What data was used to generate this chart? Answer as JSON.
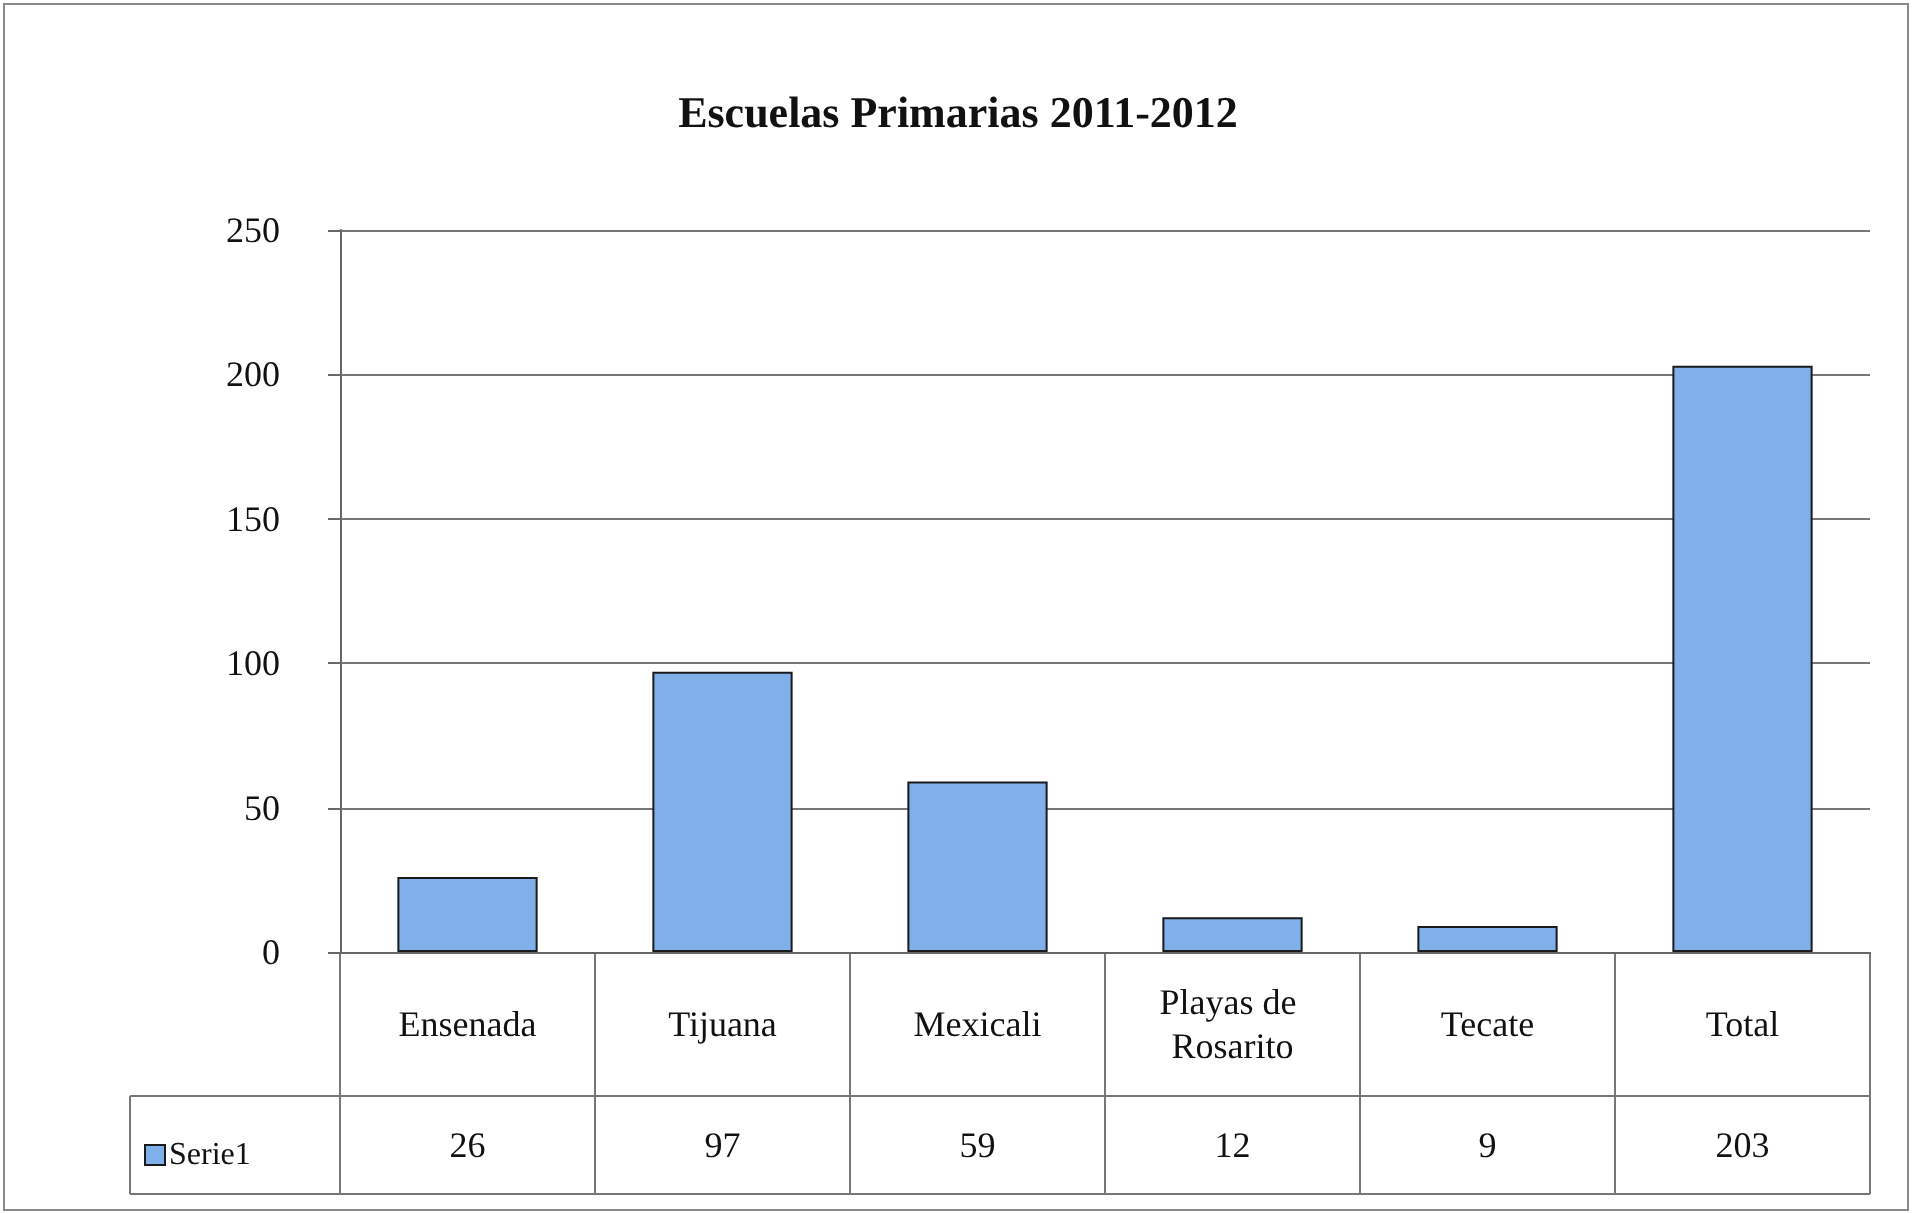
{
  "chart_data": {
    "type": "bar",
    "title": "Escuelas Primarias 2011-2012",
    "categories": [
      "Ensenada",
      "Tijuana",
      "Mexicali",
      "Playas de Rosarito",
      "Tecate",
      "Total"
    ],
    "series": [
      {
        "name": "Serie1",
        "color": "#7fb0ea",
        "values": [
          26,
          97,
          59,
          12,
          9,
          203
        ]
      }
    ],
    "ylim": [
      0,
      250
    ],
    "yticks": [
      0,
      50,
      100,
      150,
      200,
      250
    ],
    "grid": "y",
    "legend": "bottom left",
    "data_labels": true
  }
}
